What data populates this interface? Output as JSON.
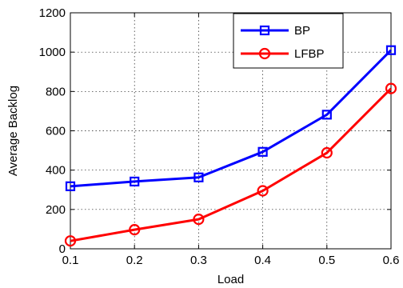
{
  "chart_data": {
    "type": "line",
    "xlabel": "Load",
    "ylabel": "Average Backlog",
    "xlim": [
      0.1,
      0.6
    ],
    "ylim": [
      0,
      1200
    ],
    "xticks": [
      "0.1",
      "0.2",
      "0.3",
      "0.4",
      "0.5",
      "0.6"
    ],
    "yticks": [
      "0",
      "200",
      "400",
      "600",
      "800",
      "1000",
      "1200"
    ],
    "grid": true,
    "legend_position": "top-right",
    "x": [
      0.1,
      0.2,
      0.3,
      0.4,
      0.5,
      0.6
    ],
    "series": [
      {
        "name": "BP",
        "color": "#0000ff",
        "marker": "square",
        "values": [
          318,
          342,
          363,
          493,
          682,
          1010
        ]
      },
      {
        "name": "LFBP",
        "color": "#ff0000",
        "marker": "circle",
        "values": [
          40,
          97,
          150,
          295,
          488,
          815
        ]
      }
    ]
  }
}
